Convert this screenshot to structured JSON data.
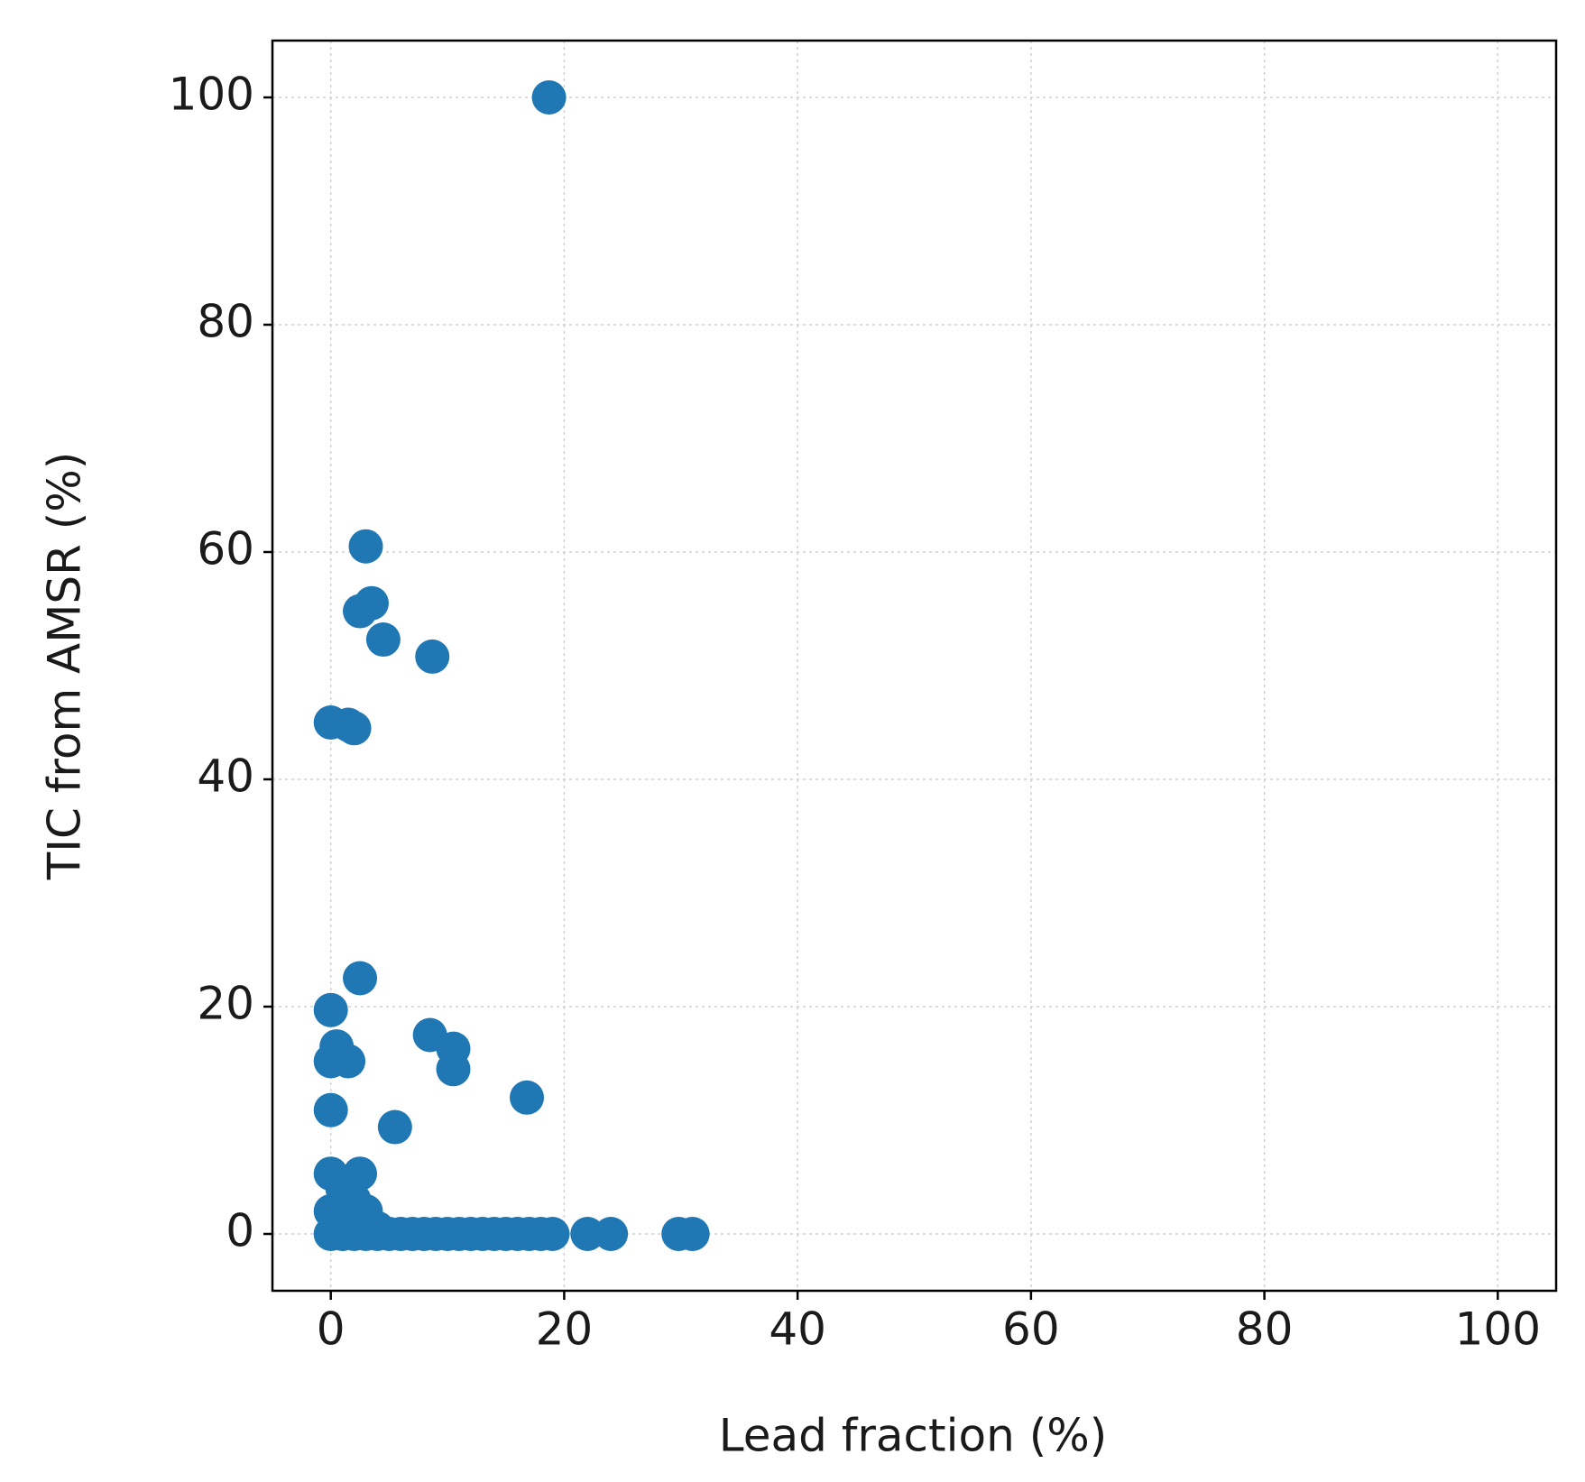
{
  "chart_data": {
    "type": "scatter",
    "x_label": "Lead fraction (%)",
    "y_label": "TIC from AMSR (%)",
    "color": "#1f77b4",
    "grid": true,
    "xlim": [
      -5,
      105
    ],
    "ylim": [
      -5,
      105
    ],
    "xticks": [
      0,
      20,
      40,
      60,
      80,
      100
    ],
    "yticks": [
      0,
      20,
      40,
      60,
      80,
      100
    ],
    "x": [
      18.7,
      3,
      3.5,
      2.5,
      4.5,
      8.7,
      0,
      1.5,
      2,
      2.5,
      0,
      8.5,
      10.5,
      0.5,
      0,
      1.5,
      10.5,
      16.8,
      0,
      5.5,
      0,
      2.5,
      1,
      2,
      3,
      0,
      1,
      2,
      3,
      4,
      0,
      1,
      2,
      3,
      4,
      5,
      6,
      7,
      8,
      9,
      10,
      11,
      12,
      13,
      14,
      15,
      16,
      17,
      18,
      19,
      22,
      24,
      29.8,
      31
    ],
    "y": [
      100,
      60.5,
      55.5,
      54.8,
      52.3,
      50.8,
      45,
      44.8,
      44.5,
      22.5,
      19.7,
      17.5,
      16.3,
      16.5,
      15.2,
      15.2,
      14.5,
      12,
      10.9,
      9.4,
      5.3,
      5.3,
      4,
      3,
      2,
      2,
      1,
      1,
      1,
      0.5,
      0,
      0,
      0,
      0,
      0,
      0,
      0,
      0,
      0,
      0,
      0,
      0,
      0,
      0,
      0,
      0,
      0,
      0,
      0,
      0,
      0,
      0,
      0,
      0
    ]
  }
}
